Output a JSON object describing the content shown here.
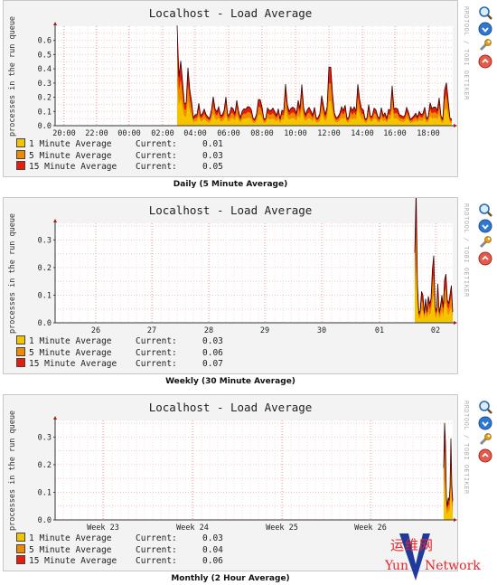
{
  "graphs": [
    {
      "title": "Localhost - Load Average",
      "ylabel": "processes in the run queue",
      "watermark": "RRDTOOL / TOBI OETIKER",
      "caption": "Daily (5 Minute Average)",
      "yticks": [
        "0.0",
        "0.1",
        "0.2",
        "0.3",
        "0.4",
        "0.5",
        "0.6"
      ],
      "xticks": [
        "20:00",
        "22:00",
        "00:00",
        "02:00",
        "04:00",
        "06:00",
        "08:00",
        "10:00",
        "12:00",
        "14:00",
        "16:00",
        "18:00"
      ],
      "legend": [
        {
          "name": "1 Minute Average",
          "label": "Current:",
          "value": "0.01",
          "color": "#f5c400"
        },
        {
          "name": "5 Minute Average",
          "label": "Current:",
          "value": "0.03",
          "color": "#ef8a00"
        },
        {
          "name": "15 Minute Average",
          "label": "Current:",
          "value": "0.05",
          "color": "#e81c0a"
        }
      ]
    },
    {
      "title": "Localhost - Load Average",
      "ylabel": "processes in the run queue",
      "watermark": "RRDTOOL / TOBI OETIKER",
      "caption": "Weekly (30 Minute Average)",
      "yticks": [
        "0.0",
        "0.1",
        "0.2",
        "0.3"
      ],
      "xticks": [
        "26",
        "27",
        "28",
        "29",
        "30",
        "01",
        "02"
      ],
      "legend": [
        {
          "name": "1 Minute Average",
          "label": "Current:",
          "value": "0.03",
          "color": "#f5c400"
        },
        {
          "name": "5 Minute Average",
          "label": "Current:",
          "value": "0.06",
          "color": "#ef8a00"
        },
        {
          "name": "15 Minute Average",
          "label": "Current:",
          "value": "0.07",
          "color": "#e81c0a"
        }
      ]
    },
    {
      "title": "Localhost - Load Average",
      "ylabel": "processes in the run queue",
      "watermark": "RRDTOOL / TOBI OETIKER",
      "caption": "Monthly (2 Hour Average)",
      "yticks": [
        "0.0",
        "0.1",
        "0.2",
        "0.3"
      ],
      "xticks": [
        "Week 23",
        "Week 24",
        "Week 25",
        "Week 26"
      ],
      "legend": [
        {
          "name": "1 Minute Average",
          "label": "Current:",
          "value": "0.03",
          "color": "#f5c400"
        },
        {
          "name": "5 Minute Average",
          "label": "Current:",
          "value": "0.04",
          "color": "#ef8a00"
        },
        {
          "name": "15 Minute Average",
          "label": "Current:",
          "value": "0.06",
          "color": "#e81c0a"
        }
      ]
    }
  ],
  "icons": [
    "zoom-icon",
    "info-icon",
    "wrench-icon",
    "delete-icon"
  ],
  "watermark_logo": {
    "cn": "运维网",
    "en_left": "Yun",
    "en_right": "Network"
  }
}
